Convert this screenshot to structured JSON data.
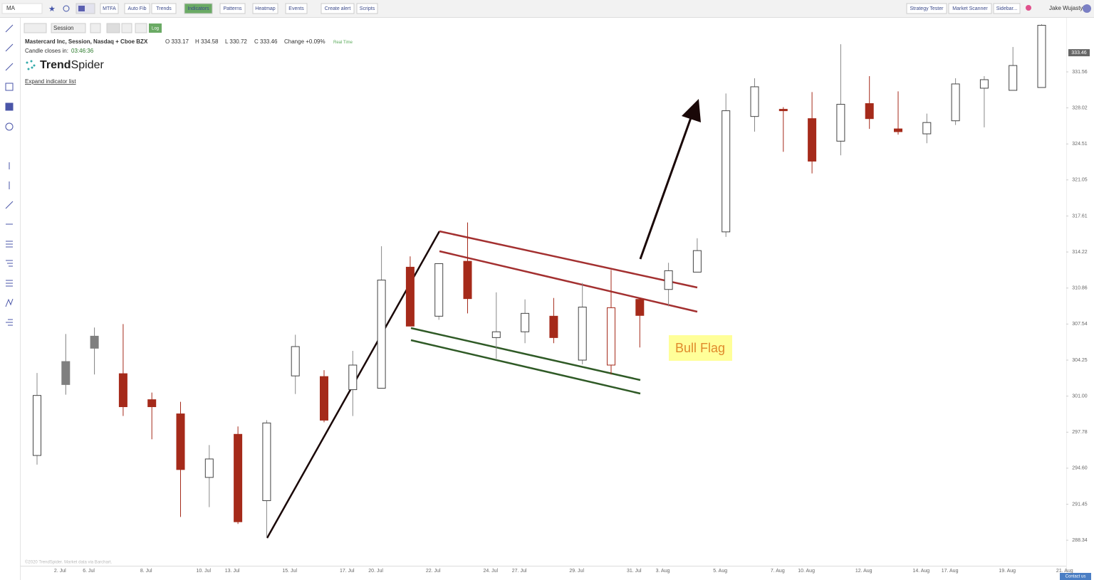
{
  "toolbar": {
    "symbol": "MA",
    "buttons": [
      "MTFA",
      "Auto Fib",
      "Trends",
      "Indicators",
      "Patterns",
      "Heatmap",
      "Events",
      "Create alert",
      "Scripts"
    ],
    "right_buttons": [
      "Strategy Tester",
      "Market Scanner",
      "Sidebar..."
    ],
    "user": "Jake Wujastyk"
  },
  "chart_header": {
    "session": "Session",
    "log": "Log",
    "instrument": "Mastercard Inc, Session, Nasdaq + Cboe BZX",
    "open": "O 333.17",
    "high": "H 334.58",
    "low": "L 330.72",
    "close": "C 333.46",
    "change": "Change +0.09%",
    "realtime": "Real Time",
    "countdown_label": "Candle closes in:",
    "countdown": "03:46:36",
    "logo_bold": "Trend",
    "logo_light": "Spider",
    "expand": "Expand indicator list"
  },
  "chart_data": {
    "type": "candlestick",
    "log_scale": true,
    "categories": [
      null,
      "2. Jul",
      "6. Jul",
      null,
      "8. Jul",
      null,
      "10. Jul",
      "13. Jul",
      null,
      "15. Jul",
      null,
      "17. Jul",
      "20. Jul",
      null,
      "22. Jul",
      null,
      "24. Jul",
      "27. Jul",
      null,
      "29. Jul",
      null,
      "31. Jul",
      "3. Aug",
      null,
      "5. Aug",
      null,
      "7. Aug",
      "10. Aug",
      null,
      "12. Aug",
      null,
      "14. Aug",
      "17. Aug",
      null,
      "19. Aug",
      null,
      "21. Aug"
    ],
    "open": [
      295.72,
      304.12,
      306.43,
      303.02,
      300.68,
      299.41,
      293.79,
      297.59,
      291.76,
      302.82,
      302.76,
      301.58,
      301.71,
      312.8,
      308.26,
      313.35,
      306.3,
      306.83,
      308.26,
      304.25,
      303.8,
      309.81,
      310.73,
      312.34,
      316.11,
      327.18,
      327.88,
      326.97,
      324.78,
      328.44,
      325.97,
      325.49,
      326.76,
      329.95,
      329.74,
      330.02,
      null
    ],
    "high": [
      303.08,
      306.63,
      307.22,
      307.54,
      301.32,
      300.49,
      296.64,
      298.29,
      298.85,
      306.56,
      303.34,
      305.09,
      314.76,
      313.81,
      313.13,
      317.0,
      310.46,
      309.81,
      309.94,
      311.33,
      312.54,
      309.94,
      313.21,
      315.51,
      329.43,
      330.93,
      328.09,
      329.57,
      334.31,
      331.14,
      329.64,
      327.46,
      330.93,
      331.14,
      334.03,
      336.3,
      null
    ],
    "low": [
      294.91,
      301.13,
      302.95,
      299.22,
      297.15,
      290.35,
      291.2,
      289.74,
      288.52,
      301.19,
      298.66,
      299.22,
      301.71,
      307.35,
      307.93,
      308.52,
      304.38,
      305.79,
      305.79,
      303.86,
      302.95,
      305.4,
      309.17,
      312.34,
      315.64,
      325.7,
      323.75,
      321.67,
      323.41,
      325.97,
      325.42,
      324.58,
      326.35,
      326.12,
      329.74,
      330.02,
      null
    ],
    "close": [
      301.06,
      302.04,
      305.33,
      300.05,
      300.05,
      294.48,
      295.41,
      289.93,
      298.6,
      305.48,
      298.85,
      303.8,
      311.6,
      307.35,
      313.13,
      309.88,
      306.83,
      308.52,
      306.3,
      309.1,
      309.04,
      308.33,
      312.47,
      314.35,
      327.74,
      330.09,
      327.74,
      322.85,
      328.37,
      326.97,
      325.7,
      326.59,
      330.37,
      330.79,
      332.19,
      336.2,
      null
    ],
    "fills": [
      "#ffffff",
      "#7f7f7f",
      "#7f7f7f",
      "#a52a1a",
      "#a52a1a",
      "#a52a1a",
      "#ffffff",
      "#a52a1a",
      "#ffffff",
      "#ffffff",
      "#a52a1a",
      "#ffffff",
      "#ffffff",
      "#a52a1a",
      "#ffffff",
      "#a52a1a",
      "#ffffff",
      "#ffffff",
      "#a52a1a",
      "#ffffff",
      "#ffffff",
      "#a52a1a",
      "#ffffff",
      "#ffffff",
      "#ffffff",
      "#ffffff",
      "#a52a1a",
      "#a52a1a",
      "#ffffff",
      "#a52a1a",
      "#a52a1a",
      "#ffffff",
      "#ffffff",
      "#ffffff",
      "#ffffff",
      "#ffffff",
      null
    ],
    "strokes": [
      "#444444",
      "#7f7f7f",
      "#7f7f7f",
      "#a52a1a",
      "#a52a1a",
      "#a52a1a",
      "#444444",
      "#a52a1a",
      "#444444",
      "#444444",
      "#a52a1a",
      "#444444",
      "#444444",
      "#a52a1a",
      "#444444",
      "#a52a1a",
      "#444444",
      "#444444",
      "#a52a1a",
      "#444444",
      "#a52a1a",
      "#a52a1a",
      "#444444",
      "#444444",
      "#444444",
      "#444444",
      "#a52a1a",
      "#a52a1a",
      "#444444",
      "#a52a1a",
      "#a52a1a",
      "#444444",
      "#444444",
      "#444444",
      "#444444",
      "#444444",
      null
    ],
    "ylim": [
      286.15,
      336.38
    ],
    "yticks": [
      288.34,
      291.45,
      {
        "value": 294.6,
        "label": "294.60"
      },
      297.78,
      {
        "value": 301,
        "label": "301.00"
      },
      304.25,
      307.54,
      310.86,
      314.22,
      317.61,
      321.05,
      324.51,
      328.02,
      331.56
    ],
    "last_price": 333.46,
    "annotation": "Bull Flag",
    "footer": "©2020 TrendSpider. Market data via Barchart."
  },
  "contact": "Contact us"
}
